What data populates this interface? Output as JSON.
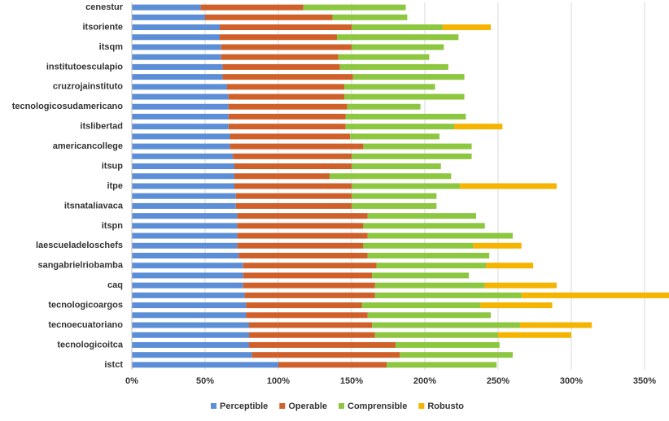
{
  "chart_data": {
    "type": "stacked_barh",
    "categories": [
      "cenestur",
      null,
      "itsoriente",
      null,
      "itsqm",
      null,
      "institutoesculapio",
      null,
      "cruzrojainstituto",
      null,
      "tecnologicosudamericano",
      null,
      "itslibertad",
      null,
      "americancollege",
      null,
      "itsup",
      null,
      "itpe",
      null,
      "itsnataliavaca",
      null,
      "itspn",
      null,
      "laescueladeloschefs",
      null,
      "sangabrielriobamba",
      null,
      "caq",
      null,
      "tecnologicoargos",
      null,
      "tecnoecuatoriano",
      null,
      "tecnologicoitca",
      null,
      "istct"
    ],
    "series": [
      {
        "name": "Perceptible",
        "color": "#5b8ed6",
        "values": [
          47,
          50,
          60,
          60,
          61,
          61,
          62,
          62,
          65,
          66,
          66,
          66,
          66,
          67,
          67,
          69,
          70,
          70,
          70,
          71,
          71,
          72,
          72,
          72,
          72,
          73,
          76,
          76,
          76,
          77,
          78,
          78,
          80,
          80,
          80,
          82,
          100
        ]
      },
      {
        "name": "Operable",
        "color": "#d0602a",
        "values": [
          70,
          87,
          90,
          80,
          89,
          80,
          80,
          89,
          80,
          79,
          81,
          80,
          80,
          82,
          91,
          81,
          80,
          65,
          80,
          79,
          79,
          89,
          86,
          89,
          86,
          88,
          91,
          88,
          90,
          89,
          79,
          83,
          84,
          86,
          100,
          101,
          74
        ]
      },
      {
        "name": "Comprensible",
        "color": "#8dc63f",
        "values": [
          70,
          51,
          62,
          83,
          63,
          62,
          74,
          76,
          62,
          82,
          50,
          82,
          74,
          61,
          74,
          82,
          61,
          83,
          74,
          58,
          58,
          74,
          83,
          99,
          75,
          83,
          75,
          66,
          75,
          100,
          81,
          84,
          101,
          84,
          71,
          77,
          75
        ]
      },
      {
        "name": "Robusto",
        "color": "#f5b400",
        "values": [
          0,
          0,
          33,
          0,
          0,
          0,
          0,
          0,
          0,
          0,
          0,
          0,
          33,
          0,
          0,
          0,
          0,
          0,
          66,
          0,
          0,
          0,
          0,
          0,
          33,
          0,
          32,
          0,
          49,
          101,
          49,
          0,
          49,
          50,
          0,
          0,
          0
        ]
      }
    ],
    "xlim": [
      0,
      366.7
    ],
    "xticks": [
      {
        "value": 0,
        "label": "0%"
      },
      {
        "value": 50,
        "label": "50%"
      },
      {
        "value": 100,
        "label": "100%"
      },
      {
        "value": 150,
        "label": "150%"
      },
      {
        "value": 200,
        "label": "200%"
      },
      {
        "value": 250,
        "label": "250%"
      },
      {
        "value": 300,
        "label": "300%"
      },
      {
        "value": 350,
        "label": "350%"
      }
    ],
    "grid": true,
    "legend": "bottom"
  }
}
